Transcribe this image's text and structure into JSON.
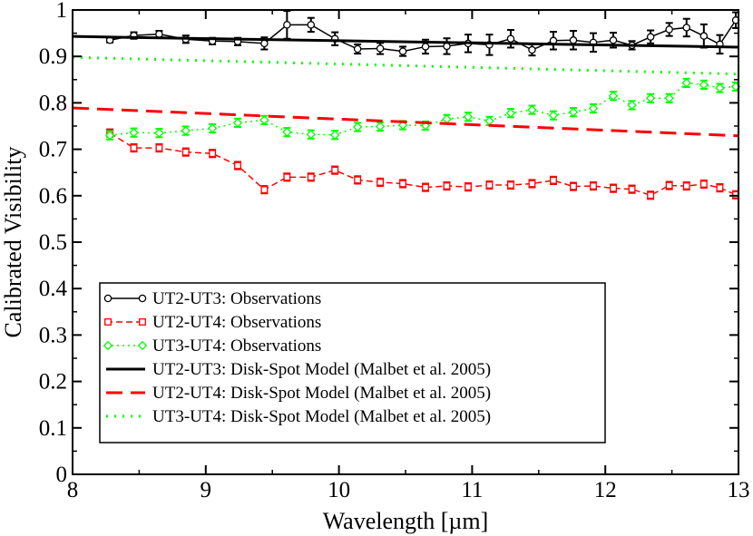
{
  "chart_data": {
    "type": "line",
    "title": "",
    "xlabel": "Wavelength [µm]",
    "ylabel": "Calibrated Visibility",
    "xlim": [
      8,
      13
    ],
    "ylim": [
      0,
      1
    ],
    "x_ticks": [
      8,
      9,
      10,
      11,
      12,
      13
    ],
    "x_tick_labels": [
      "8",
      "9",
      "10",
      "11",
      "12",
      "13"
    ],
    "y_ticks": [
      0,
      0.1,
      0.2,
      0.3,
      0.4,
      0.5,
      0.6,
      0.7,
      0.8,
      0.9,
      1
    ],
    "y_tick_labels": [
      "0",
      "0.1",
      "0.2",
      "0.3",
      "0.4",
      "0.5",
      "0.6",
      "0.7",
      "0.8",
      "0.9",
      "1"
    ],
    "grid": false,
    "legend_position": "bottom-left",
    "x": [
      8.28,
      8.46,
      8.65,
      8.85,
      9.05,
      9.24,
      9.44,
      9.61,
      9.79,
      9.97,
      10.14,
      10.31,
      10.48,
      10.65,
      10.81,
      10.97,
      11.13,
      11.29,
      11.45,
      11.61,
      11.76,
      11.91,
      12.06,
      12.2,
      12.34,
      12.48,
      12.61,
      12.74,
      12.86,
      12.98
    ],
    "series": [
      {
        "name": "UT2-UT3: Observations",
        "color": "#000000",
        "marker": "circle",
        "line": "solid",
        "values": [
          0.935,
          0.945,
          0.948,
          0.937,
          0.933,
          0.932,
          0.928,
          0.968,
          0.968,
          0.938,
          0.916,
          0.917,
          0.911,
          0.921,
          0.922,
          0.928,
          0.925,
          0.938,
          0.914,
          0.934,
          0.935,
          0.93,
          0.935,
          0.924,
          0.942,
          0.958,
          0.962,
          0.944,
          0.926,
          0.978
        ],
        "errors": [
          0.005,
          0.007,
          0.007,
          0.008,
          0.007,
          0.008,
          0.013,
          0.03,
          0.015,
          0.014,
          0.01,
          0.012,
          0.01,
          0.015,
          0.017,
          0.019,
          0.022,
          0.019,
          0.012,
          0.019,
          0.02,
          0.02,
          0.016,
          0.009,
          0.014,
          0.014,
          0.019,
          0.025,
          0.02,
          0.017
        ]
      },
      {
        "name": "UT2-UT4: Observations",
        "color": "#ff0000",
        "marker": "square",
        "line": "dashed",
        "values": [
          0.735,
          0.703,
          0.703,
          0.694,
          0.691,
          0.665,
          0.613,
          0.64,
          0.64,
          0.655,
          0.634,
          0.629,
          0.626,
          0.618,
          0.621,
          0.619,
          0.623,
          0.623,
          0.626,
          0.633,
          0.62,
          0.621,
          0.616,
          0.614,
          0.601,
          0.622,
          0.621,
          0.625,
          0.617,
          0.602
        ]
      },
      {
        "name": "UT3-UT4: Observations",
        "color": "#00ff00",
        "marker": "diamond",
        "line": "dotted",
        "values": [
          0.73,
          0.736,
          0.735,
          0.74,
          0.745,
          0.757,
          0.763,
          0.737,
          0.732,
          0.731,
          0.748,
          0.749,
          0.752,
          0.751,
          0.765,
          0.77,
          0.761,
          0.778,
          0.785,
          0.773,
          0.78,
          0.788,
          0.815,
          0.795,
          0.81,
          0.81,
          0.843,
          0.839,
          0.832,
          0.835
        ]
      },
      {
        "name": "UT2-UT3: Disk-Spot Model (Malbet et al. 2005)",
        "color": "#000000",
        "line": "solid",
        "model_x": [
          8,
          13
        ],
        "model_values": [
          0.943,
          0.92
        ]
      },
      {
        "name": "UT2-UT4: Disk-Spot Model (Malbet et al. 2005)",
        "color": "#ff0000",
        "line": "dashed",
        "model_x": [
          8,
          13
        ],
        "model_values": [
          0.789,
          0.729
        ]
      },
      {
        "name": "UT3-UT4: Disk-Spot Model (Malbet et al. 2005)",
        "color": "#00ff00",
        "line": "dotted",
        "model_x": [
          8,
          13
        ],
        "model_values": [
          0.898,
          0.862
        ]
      }
    ]
  }
}
